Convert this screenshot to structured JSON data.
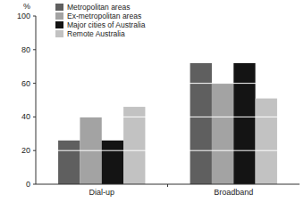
{
  "chart_data": {
    "type": "bar",
    "y_label": "%",
    "categories": [
      "Dial-up",
      "Broadband"
    ],
    "series": [
      {
        "name": "Metropolitan areas",
        "color": "#5f5f5f",
        "values": [
          26,
          72
        ]
      },
      {
        "name": "Ex-metropolitan areas",
        "color": "#a3a3a3",
        "values": [
          40,
          60
        ]
      },
      {
        "name": "Major cities of Australia",
        "color": "#141414",
        "values": [
          26,
          72
        ]
      },
      {
        "name": "Remote Australia",
        "color": "#c2c2c2",
        "values": [
          46,
          51
        ]
      }
    ],
    "ylim": [
      0,
      100
    ],
    "yticks": [
      0,
      20,
      40,
      60,
      80,
      100
    ],
    "grid": true,
    "legend": "upper left"
  }
}
